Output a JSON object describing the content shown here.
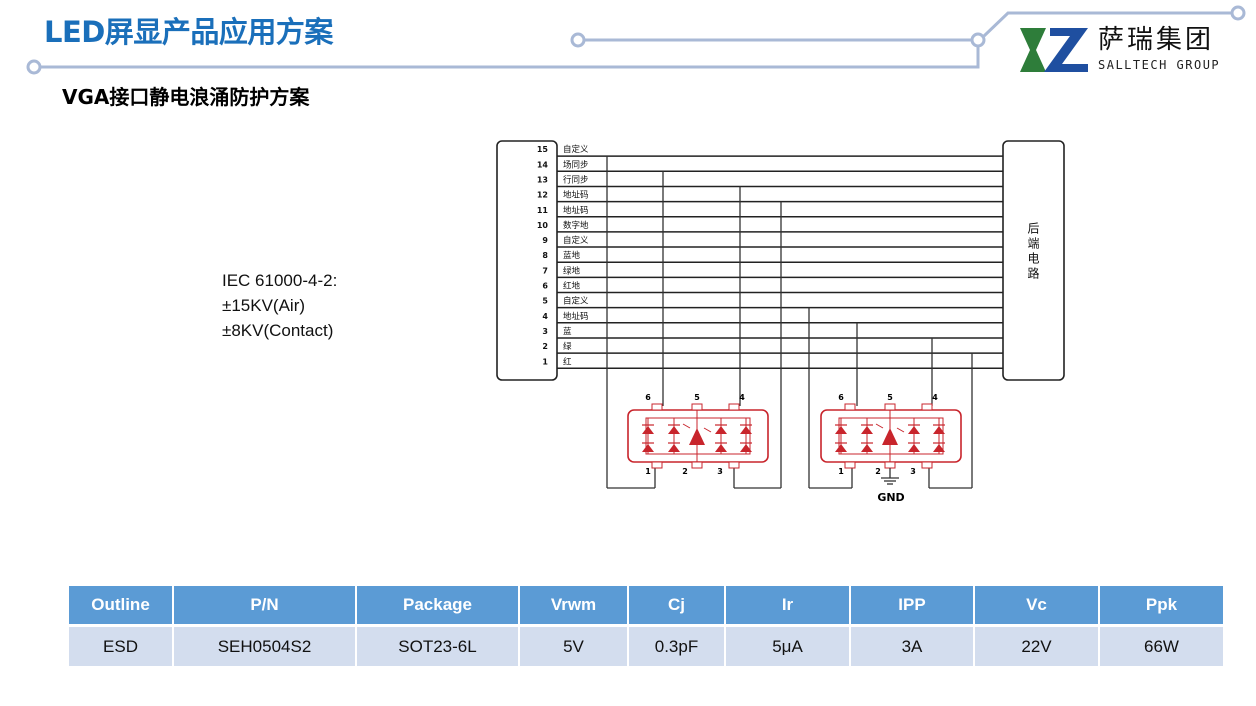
{
  "header": {
    "title": "LED屏显产品应用方案",
    "subtitle": "VGA接口静电浪涌防护方案"
  },
  "logo": {
    "cn": "萨瑞集团",
    "en": "SALLTECH GROUP",
    "green": "#2e7d3a",
    "blue": "#1f4fa0"
  },
  "spec": {
    "line1": "IEC 61000-4-2:",
    "line2": "±15KV(Air)",
    "line3": "±8KV(Contact)"
  },
  "diagram": {
    "pins": [
      {
        "num": "15",
        "label": "自定义"
      },
      {
        "num": "14",
        "label": "场同步"
      },
      {
        "num": "13",
        "label": "行同步"
      },
      {
        "num": "12",
        "label": "地址码"
      },
      {
        "num": "11",
        "label": "地址码"
      },
      {
        "num": "10",
        "label": "数字地"
      },
      {
        "num": "9",
        "label": "自定义"
      },
      {
        "num": "8",
        "label": "蓝地"
      },
      {
        "num": "7",
        "label": "绿地"
      },
      {
        "num": "6",
        "label": "红地"
      },
      {
        "num": "5",
        "label": "自定义"
      },
      {
        "num": "4",
        "label": "地址码"
      },
      {
        "num": "3",
        "label": "蓝"
      },
      {
        "num": "2",
        "label": "绿"
      },
      {
        "num": "1",
        "label": "红"
      }
    ],
    "backend": "后端电路",
    "chip_pins": [
      "1",
      "2",
      "3",
      "4",
      "5",
      "6"
    ],
    "gnd": "GND",
    "chip_color": "#c8252c"
  },
  "table": {
    "headers": [
      "Outline",
      "P/N",
      "Package",
      "Vrwm",
      "Cj",
      "Ir",
      "IPP",
      "Vc",
      "Ppk"
    ],
    "row": [
      "ESD",
      "SEH0504S2",
      "SOT23-6L",
      "5V",
      "0.3pF",
      "5μA",
      "3A",
      "22V",
      "66W"
    ],
    "header_color": "#5b9bd5",
    "row_color": "#d3ddee"
  }
}
